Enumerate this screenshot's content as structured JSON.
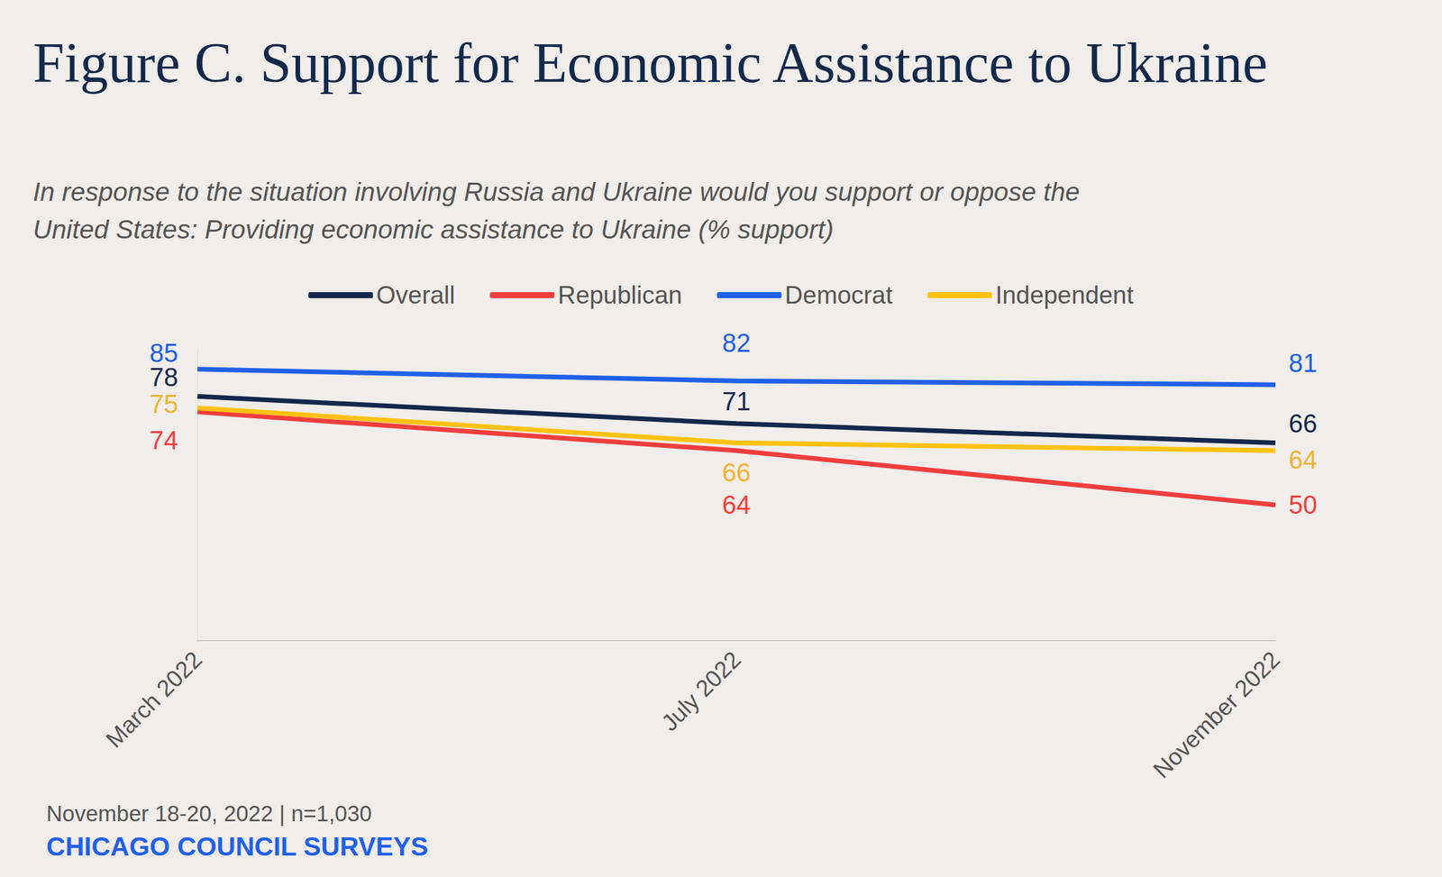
{
  "chart_data": {
    "type": "line",
    "title": "Figure C. Support for Economic Assistance to Ukraine",
    "subtitle": "In response to the situation involving Russia and Ukraine would you support or oppose the United States: Providing economic assistance to Ukraine (% support)",
    "categories": [
      "March 2022",
      "July 2022",
      "November 2022"
    ],
    "series": [
      {
        "name": "Overall",
        "color": "#13294b",
        "values": [
          78,
          71,
          66
        ]
      },
      {
        "name": "Republican",
        "color": "#f03e3e",
        "values": [
          74,
          64,
          50
        ]
      },
      {
        "name": "Democrat",
        "color": "#2160e8",
        "values": [
          85,
          82,
          81
        ]
      },
      {
        "name": "Independent",
        "color": "#ffc20e",
        "values": [
          75,
          66,
          64
        ]
      }
    ],
    "ylim": [
      15,
      90
    ],
    "tick_labels": "x",
    "grid": false,
    "legend": "top",
    "data_labels": true,
    "footnote": "November 18-20, 2022 | n=1,030",
    "source": "CHICAGO COUNCIL SURVEYS"
  }
}
